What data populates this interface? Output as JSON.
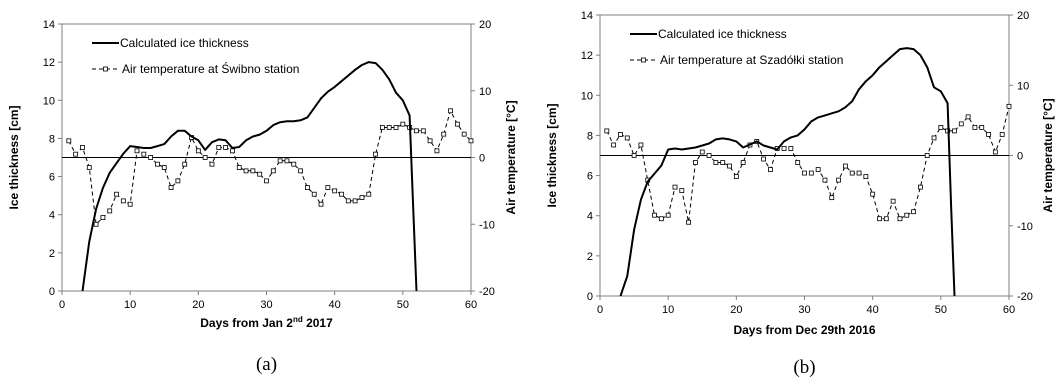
{
  "chart_data": [
    {
      "type": "line",
      "panel_label": "(a)",
      "xlabel": "Days from Jan 2",
      "xlabel_sup": "nd",
      "xlabel_tail": " 2017",
      "ylabel": "Ice thickness [cm]",
      "y2label": "Air temperature [°C]",
      "xlim": [
        0,
        60
      ],
      "ylim": [
        0,
        14
      ],
      "y2lim": [
        -20,
        20
      ],
      "xticks": [
        0,
        10,
        20,
        30,
        40,
        50,
        60
      ],
      "yticks": [
        0,
        2,
        4,
        6,
        8,
        10,
        12,
        14
      ],
      "y2ticks": [
        -20,
        -10,
        0,
        10,
        20
      ],
      "reference_line_y2": 0,
      "legend_position": "top-left",
      "series": [
        {
          "name": "Calculated ice thickness",
          "axis": "left",
          "style": "solid",
          "x": [
            3,
            4,
            5,
            6,
            7,
            8,
            9,
            10,
            11,
            12,
            13,
            14,
            15,
            16,
            17,
            18,
            19,
            20,
            21,
            22,
            23,
            24,
            25,
            26,
            27,
            28,
            29,
            30,
            31,
            32,
            33,
            34,
            35,
            36,
            37,
            38,
            39,
            40,
            41,
            42,
            43,
            44,
            45,
            46,
            47,
            48,
            49,
            50,
            51,
            51.5,
            52
          ],
          "y": [
            0,
            2.6,
            4.3,
            5.4,
            6.2,
            6.7,
            7.2,
            7.6,
            7.55,
            7.5,
            7.5,
            7.6,
            7.7,
            8.1,
            8.4,
            8.4,
            8.1,
            7.9,
            7.4,
            7.8,
            7.95,
            7.9,
            7.5,
            7.55,
            7.9,
            8.1,
            8.2,
            8.4,
            8.7,
            8.85,
            8.9,
            8.9,
            8.95,
            9.1,
            9.6,
            10.1,
            10.45,
            10.7,
            11.0,
            11.3,
            11.6,
            11.85,
            12.0,
            11.95,
            11.6,
            11.1,
            10.4,
            10.0,
            9.2,
            4.5,
            0
          ]
        },
        {
          "name": "Air temperature at Świbno station",
          "axis": "right",
          "style": "dashed-open-square",
          "x": [
            1,
            2,
            3,
            4,
            5,
            6,
            7,
            8,
            9,
            10,
            11,
            12,
            13,
            14,
            15,
            16,
            17,
            18,
            19,
            20,
            21,
            22,
            23,
            24,
            25,
            26,
            27,
            28,
            29,
            30,
            31,
            32,
            33,
            34,
            35,
            36,
            37,
            38,
            39,
            40,
            41,
            42,
            43,
            44,
            45,
            46,
            47,
            48,
            49,
            50,
            51,
            52,
            53,
            54,
            55,
            56,
            57,
            58,
            59,
            60
          ],
          "y": [
            2.5,
            0.5,
            1.5,
            -1.5,
            -10.0,
            -9.0,
            -8.0,
            -5.5,
            -6.5,
            -7.0,
            1.0,
            0.5,
            0,
            -1.0,
            -1.5,
            -4.5,
            -3.5,
            -1.0,
            3.0,
            1.0,
            0,
            -1.0,
            1.5,
            1.5,
            1.0,
            -1.5,
            -2.0,
            -2.0,
            -2.5,
            -3.5,
            -2.0,
            -0.5,
            -0.5,
            -1.0,
            -2.0,
            -4.5,
            -5.5,
            -7.0,
            -4.5,
            -5.0,
            -5.5,
            -6.5,
            -6.5,
            -6.0,
            -5.5,
            0.5,
            4.5,
            4.5,
            4.5,
            5.0,
            4.5,
            4.0,
            4.0,
            2.5,
            1.0,
            3.5,
            7.0,
            5.0,
            3.5,
            2.5
          ]
        }
      ]
    },
    {
      "type": "line",
      "panel_label": "(b)",
      "xlabel": "Days from Dec 29th 2016",
      "xlabel_sup": "",
      "xlabel_tail": "",
      "ylabel": "Ice thickness [cm]",
      "y2label": "Air temperature [°C]",
      "xlim": [
        0,
        60
      ],
      "ylim": [
        0,
        14
      ],
      "y2lim": [
        -20,
        20
      ],
      "xticks": [
        0,
        10,
        20,
        30,
        40,
        50,
        60
      ],
      "yticks": [
        0,
        2,
        4,
        6,
        8,
        10,
        12,
        14
      ],
      "y2ticks": [
        -20,
        -10,
        0,
        10,
        20
      ],
      "reference_line_y2": 0,
      "legend_position": "top-left",
      "series": [
        {
          "name": "Calculated ice thickness",
          "axis": "left",
          "style": "solid",
          "x": [
            3,
            4,
            5,
            6,
            7,
            8,
            9,
            10,
            11,
            12,
            13,
            14,
            15,
            16,
            17,
            18,
            19,
            20,
            21,
            22,
            23,
            24,
            25,
            26,
            27,
            28,
            29,
            30,
            31,
            32,
            33,
            34,
            35,
            36,
            37,
            38,
            39,
            40,
            41,
            42,
            43,
            44,
            45,
            46,
            47,
            48,
            49,
            50,
            51,
            51.5,
            52
          ],
          "y": [
            0,
            1.0,
            3.3,
            4.8,
            5.7,
            6.1,
            6.5,
            7.3,
            7.35,
            7.3,
            7.35,
            7.4,
            7.5,
            7.6,
            7.8,
            7.85,
            7.8,
            7.7,
            7.4,
            7.55,
            7.7,
            7.5,
            7.4,
            7.3,
            7.7,
            7.9,
            8.0,
            8.3,
            8.7,
            8.9,
            9.0,
            9.1,
            9.2,
            9.4,
            9.7,
            10.3,
            10.7,
            11.0,
            11.4,
            11.7,
            12.0,
            12.3,
            12.35,
            12.3,
            12.0,
            11.4,
            10.4,
            10.2,
            9.6,
            4.5,
            0
          ]
        },
        {
          "name": "Air temperature at Szadółki station",
          "axis": "right",
          "style": "dashed-open-square",
          "x": [
            1,
            2,
            3,
            4,
            5,
            6,
            7,
            8,
            9,
            10,
            11,
            12,
            13,
            14,
            15,
            16,
            17,
            18,
            19,
            20,
            21,
            22,
            23,
            24,
            25,
            26,
            27,
            28,
            29,
            30,
            31,
            32,
            33,
            34,
            35,
            36,
            37,
            38,
            39,
            40,
            41,
            42,
            43,
            44,
            45,
            46,
            47,
            48,
            49,
            50,
            51,
            52,
            53,
            54,
            55,
            56,
            57,
            58,
            59,
            60
          ],
          "y": [
            3.5,
            1.5,
            3.0,
            2.5,
            0,
            1.5,
            -3.5,
            -8.5,
            -9.0,
            -8.5,
            -4.5,
            -5.0,
            -9.5,
            -1.0,
            0.5,
            0,
            -1.0,
            -1.0,
            -1.5,
            -3.0,
            -1.0,
            1.5,
            2.0,
            -0.5,
            -2.0,
            1.0,
            1.0,
            1.0,
            -1.0,
            -2.5,
            -2.5,
            -2.0,
            -3.5,
            -6.0,
            -3.5,
            -1.5,
            -2.5,
            -2.5,
            -3.0,
            -5.5,
            -9.0,
            -9.0,
            -6.5,
            -9.0,
            -8.5,
            -8.0,
            -4.5,
            0,
            2.5,
            4.0,
            3.5,
            3.5,
            4.5,
            5.5,
            4.0,
            4.0,
            3.0,
            0.5,
            3.0,
            7.0
          ]
        }
      ]
    }
  ]
}
